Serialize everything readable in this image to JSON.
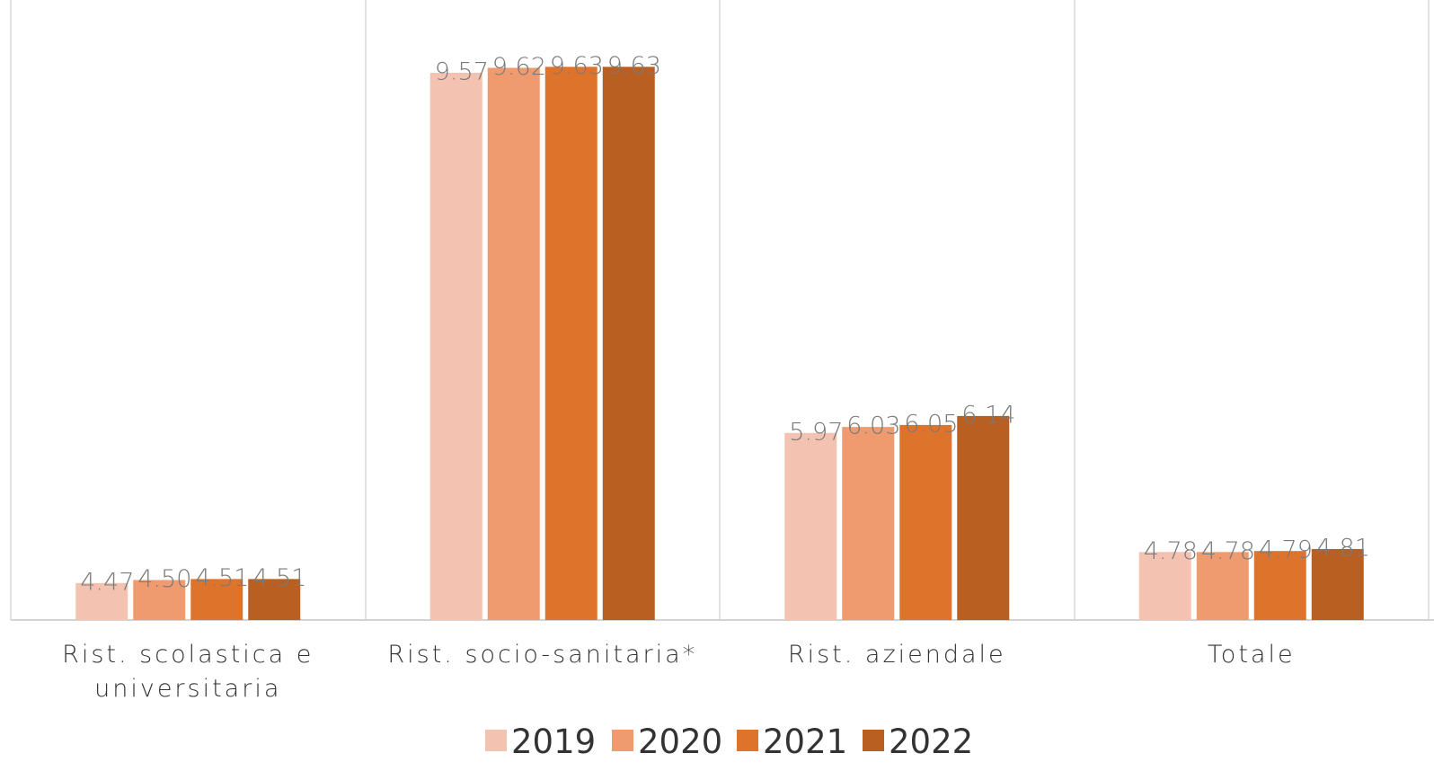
{
  "chart_data": {
    "type": "bar",
    "categories": [
      [
        "Rist. scolastica e",
        "universitaria"
      ],
      [
        "Rist. socio-sanitaria*"
      ],
      [
        "Rist. aziendale"
      ],
      [
        "Totale"
      ]
    ],
    "series": [
      {
        "name": "2019",
        "color": "#f4c2b0",
        "values": [
          4.47,
          9.57,
          5.97,
          4.78
        ]
      },
      {
        "name": "2020",
        "color": "#ef9a6f",
        "values": [
          4.5,
          9.62,
          6.03,
          4.78
        ]
      },
      {
        "name": "2021",
        "color": "#de742c",
        "values": [
          4.51,
          9.63,
          6.05,
          4.79
        ]
      },
      {
        "name": "2022",
        "color": "#b95f22",
        "values": [
          4.51,
          9.63,
          6.14,
          4.81
        ]
      }
    ],
    "data_labels": [
      [
        "4.47",
        "4.50",
        "4.51",
        "4.51"
      ],
      [
        "9.57",
        "9.62",
        "9.63",
        "9.63"
      ],
      [
        "5.97",
        "6.03",
        "6.05",
        "6.14"
      ],
      [
        "4.78",
        "4.78",
        "4.79",
        "4.81"
      ]
    ],
    "ylim": [
      4.1,
      9.75
    ],
    "grid": false,
    "category_separators": true,
    "legend_position": "bottom"
  }
}
